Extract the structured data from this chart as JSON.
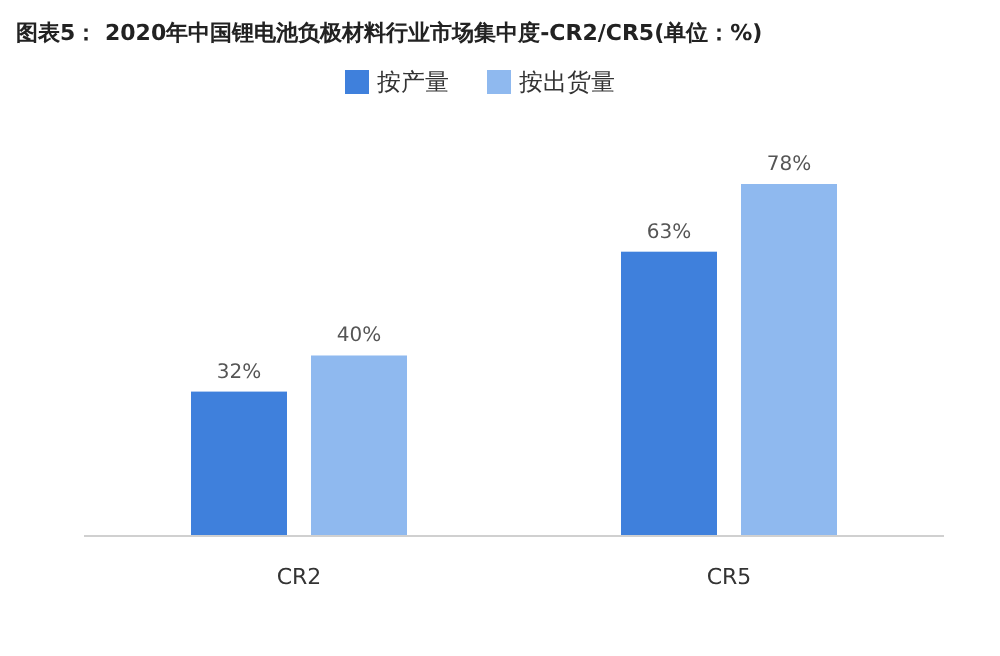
{
  "chart_data": {
    "type": "bar",
    "title": "图表5： 2020年中国锂电池负极材料行业市场集中度-CR2/CR5(单位：%)",
    "categories": [
      "CR2",
      "CR5"
    ],
    "series": [
      {
        "name": "按产量",
        "color": "#3f80dc",
        "values": [
          32,
          63
        ],
        "value_labels": [
          "32%",
          "63%"
        ]
      },
      {
        "name": "按出货量",
        "color": "#8fb9ef",
        "values": [
          40,
          78
        ],
        "value_labels": [
          "40%",
          "78%"
        ]
      }
    ],
    "legend": "top"
  }
}
